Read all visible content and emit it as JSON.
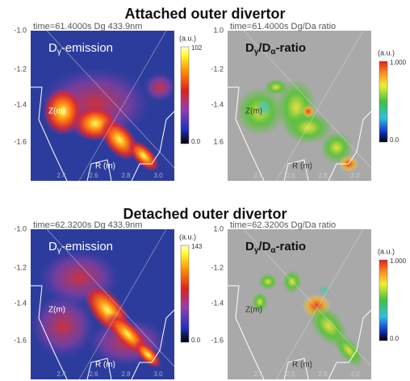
{
  "sections": [
    {
      "title": "Attached outer divertor",
      "panels": [
        {
          "kind": "emission",
          "header": "time=61.4000s Dg 433.9nm",
          "label_parts": [
            "D",
            "γ",
            "-emission"
          ],
          "unit": "(a.u.)",
          "colorbar_max": "102",
          "colorbar_min": "0.0",
          "yticks": [
            "-1.0",
            "-1.2",
            "-1.4",
            "-1.6"
          ],
          "ylabel": "Z(m)",
          "xlabel": "R (m)",
          "xticks": [
            "2.4",
            "2.6",
            "2.8",
            "3.0"
          ]
        },
        {
          "kind": "ratio",
          "header": "time=61.4000s Dg/Da ratio",
          "label_parts": [
            "D",
            "γ",
            "/D",
            "α",
            "-ratio"
          ],
          "unit": "(a.u.)",
          "colorbar_max": "1.000",
          "colorbar_min": "0.0",
          "yticks": [
            "1.0",
            "-1.2",
            "-1.4",
            "1.6"
          ],
          "ylabel": "Z(m)",
          "xlabel": "R (m)",
          "xticks": [
            "2.4",
            "2.6",
            "2.8",
            "3.0"
          ]
        }
      ]
    },
    {
      "title": "Detached outer divertor",
      "panels": [
        {
          "kind": "emission",
          "header": "time=62.3200s Dg 433.9nm",
          "label_parts": [
            "D",
            "γ",
            "-emission"
          ],
          "unit": "(a.u.)",
          "colorbar_max": "143",
          "colorbar_min": "0.0",
          "yticks": [
            "-1.0",
            "-1.2",
            "-1.4",
            "-1.6"
          ],
          "ylabel": "Z(m)",
          "xlabel": "R (m)",
          "xticks": [
            "2.4",
            "2.6",
            "2.8",
            "3.0"
          ]
        },
        {
          "kind": "ratio",
          "header": "time=62.3200s Dg/Da ratio",
          "label_parts": [
            "D",
            "γ",
            "/D",
            "α",
            "-ratio"
          ],
          "unit": "(a.u.)",
          "colorbar_max": "1.000",
          "colorbar_min": "0.0",
          "yticks": [
            "1.0",
            "-1.2",
            "-1.4",
            "-1.6"
          ],
          "ylabel": "Z(m)",
          "xlabel": "R (m)",
          "xticks": [
            "2.4",
            "2.6",
            "2.8",
            "3.0"
          ]
        }
      ]
    }
  ]
}
